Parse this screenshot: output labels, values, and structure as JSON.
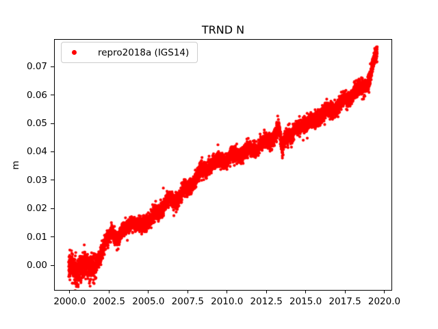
{
  "figure": {
    "background": "#ffffff",
    "frame_color": "#000000",
    "text_color": "#000000"
  },
  "chart_data": {
    "type": "scatter",
    "title": "TRND N",
    "xlabel": "",
    "ylabel": "m",
    "grid": false,
    "series_color": "#ff0000",
    "legend": {
      "label": "repro2018a (IGS14)",
      "marker_color": "#ff0000",
      "location": "upper left",
      "edge_color": "#cccccc"
    },
    "xlim": [
      1999.0,
      2020.5
    ],
    "ylim": [
      -0.0089,
      0.0797
    ],
    "x_ticks": {
      "values": [
        2000.0,
        2002.5,
        2005.0,
        2007.5,
        2010.0,
        2012.5,
        2015.0,
        2017.5,
        2020.0
      ],
      "labels": [
        "2000.0",
        "2002.5",
        "2005.0",
        "2007.5",
        "2010.0",
        "2012.5",
        "2015.0",
        "2017.5",
        "2020.0"
      ]
    },
    "y_ticks": {
      "values": [
        0.0,
        0.01,
        0.02,
        0.03,
        0.04,
        0.05,
        0.06,
        0.07
      ],
      "labels": [
        "0.00",
        "0.01",
        "0.02",
        "0.03",
        "0.04",
        "0.05",
        "0.06",
        "0.07"
      ]
    },
    "series": [
      {
        "name": "repro2018a (IGS14)",
        "start_year": 1999.93,
        "end_year": 2019.55,
        "sample_step_years": 0.003,
        "noise_std_m": 0.0013,
        "noise_std_early_m": 0.0023,
        "early_cutoff_year": 2001.7,
        "seasonal_amplitude_m": 0.0008,
        "marker_radius_px": 2.1,
        "trend_points": [
          [
            1999.93,
            -0.0005
          ],
          [
            2000.1,
            0.0005
          ],
          [
            2000.3,
            -0.0025
          ],
          [
            2000.5,
            -0.0035
          ],
          [
            2000.7,
            -0.0005
          ],
          [
            2000.9,
            0.0015
          ],
          [
            2001.1,
            0.0005
          ],
          [
            2001.3,
            -0.002
          ],
          [
            2001.5,
            -0.001
          ],
          [
            2001.7,
            0.001
          ],
          [
            2001.9,
            0.003
          ],
          [
            2002.1,
            0.0055
          ],
          [
            2002.3,
            0.008
          ],
          [
            2002.5,
            0.01
          ],
          [
            2002.7,
            0.012
          ],
          [
            2002.9,
            0.0105
          ],
          [
            2003.1,
            0.0095
          ],
          [
            2003.3,
            0.011
          ],
          [
            2003.5,
            0.0125
          ],
          [
            2003.7,
            0.014
          ],
          [
            2003.9,
            0.0155
          ],
          [
            2004.1,
            0.015
          ],
          [
            2004.3,
            0.0135
          ],
          [
            2004.5,
            0.0135
          ],
          [
            2004.7,
            0.015
          ],
          [
            2004.9,
            0.016
          ],
          [
            2005.1,
            0.016
          ],
          [
            2005.3,
            0.017
          ],
          [
            2005.5,
            0.0185
          ],
          [
            2005.7,
            0.0195
          ],
          [
            2005.9,
            0.0205
          ],
          [
            2006.1,
            0.022
          ],
          [
            2006.3,
            0.0235
          ],
          [
            2006.5,
            0.0225
          ],
          [
            2006.7,
            0.023
          ],
          [
            2006.9,
            0.024
          ],
          [
            2007.1,
            0.0255
          ],
          [
            2007.3,
            0.027
          ],
          [
            2007.5,
            0.0265
          ],
          [
            2007.7,
            0.0285
          ],
          [
            2007.9,
            0.0305
          ],
          [
            2008.1,
            0.0315
          ],
          [
            2008.3,
            0.0325
          ],
          [
            2008.5,
            0.0335
          ],
          [
            2008.7,
            0.034
          ],
          [
            2008.9,
            0.0355
          ],
          [
            2009.1,
            0.0365
          ],
          [
            2009.3,
            0.036
          ],
          [
            2009.5,
            0.037
          ],
          [
            2009.7,
            0.0375
          ],
          [
            2009.9,
            0.037
          ],
          [
            2010.1,
            0.0378
          ],
          [
            2010.3,
            0.0385
          ],
          [
            2010.5,
            0.038
          ],
          [
            2010.7,
            0.039
          ],
          [
            2010.9,
            0.0395
          ],
          [
            2011.1,
            0.0398
          ],
          [
            2011.3,
            0.0405
          ],
          [
            2011.5,
            0.0405
          ],
          [
            2011.7,
            0.0412
          ],
          [
            2011.9,
            0.0415
          ],
          [
            2012.1,
            0.0425
          ],
          [
            2012.3,
            0.0428
          ],
          [
            2012.5,
            0.0435
          ],
          [
            2012.7,
            0.0438
          ],
          [
            2012.9,
            0.0448
          ],
          [
            2013.1,
            0.0465
          ],
          [
            2013.3,
            0.048
          ],
          [
            2013.5,
            0.0405
          ],
          [
            2013.65,
            0.0445
          ],
          [
            2013.9,
            0.0465
          ],
          [
            2014.1,
            0.0455
          ],
          [
            2014.3,
            0.047
          ],
          [
            2014.5,
            0.048
          ],
          [
            2014.7,
            0.0495
          ],
          [
            2014.9,
            0.0505
          ],
          [
            2015.1,
            0.0495
          ],
          [
            2015.3,
            0.0505
          ],
          [
            2015.5,
            0.0505
          ],
          [
            2015.7,
            0.0515
          ],
          [
            2015.9,
            0.0525
          ],
          [
            2016.1,
            0.0535
          ],
          [
            2016.3,
            0.0545
          ],
          [
            2016.5,
            0.054
          ],
          [
            2016.7,
            0.0548
          ],
          [
            2016.9,
            0.0555
          ],
          [
            2017.1,
            0.0565
          ],
          [
            2017.3,
            0.0575
          ],
          [
            2017.5,
            0.0578
          ],
          [
            2017.7,
            0.0588
          ],
          [
            2017.9,
            0.0598
          ],
          [
            2018.1,
            0.0608
          ],
          [
            2018.3,
            0.0615
          ],
          [
            2018.5,
            0.0618
          ],
          [
            2018.7,
            0.0628
          ],
          [
            2018.9,
            0.064
          ],
          [
            2019.1,
            0.0665
          ],
          [
            2019.25,
            0.0695
          ],
          [
            2019.4,
            0.073
          ],
          [
            2019.55,
            0.0745
          ]
        ],
        "outliers": [
          [
            2000.45,
            -0.0062
          ],
          [
            2005.95,
            0.0272
          ],
          [
            2006.62,
            0.0175
          ],
          [
            2013.52,
            0.0378
          ],
          [
            2019.03,
            0.0609
          ]
        ]
      }
    ]
  }
}
